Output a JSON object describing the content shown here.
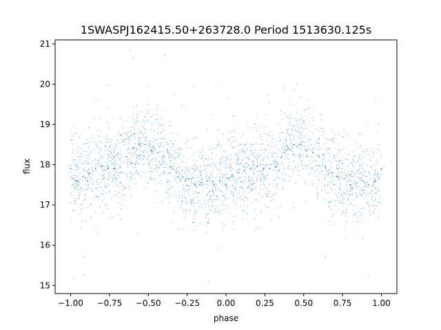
{
  "chart_data": {
    "type": "scatter",
    "title": "1SWASPJ162415.50+263728.0 Period 1513630.125s",
    "xlabel": "phase",
    "ylabel": "flux",
    "xlim": [
      -1.1,
      1.1
    ],
    "ylim": [
      14.8,
      21.1
    ],
    "xticks": [
      -1.0,
      -0.75,
      -0.5,
      -0.25,
      0.0,
      0.25,
      0.5,
      0.75,
      1.0
    ],
    "xtick_labels": [
      "−1.00",
      "−0.75",
      "−0.50",
      "−0.25",
      "0.00",
      "0.25",
      "0.50",
      "0.75",
      "1.00"
    ],
    "yticks": [
      15,
      16,
      17,
      18,
      19,
      20,
      21
    ],
    "ytick_labels": [
      "15",
      "16",
      "17",
      "18",
      "19",
      "20",
      "21"
    ],
    "grid": false,
    "legend": "none",
    "marker_color": "#1f77b4",
    "series": [
      {
        "x": [
          -1.0,
          -0.96,
          -0.92,
          -0.88,
          -0.84,
          -0.8,
          -0.76,
          -0.72,
          -0.68,
          -0.64,
          -0.6,
          -0.56,
          -0.52,
          -0.48,
          -0.44,
          -0.4,
          -0.36,
          -0.32,
          -0.28,
          -0.24,
          -0.2,
          -0.16,
          -0.12,
          -0.08,
          -0.04,
          0.0,
          0.04,
          0.08,
          0.12,
          0.16,
          0.2,
          0.24,
          0.28,
          0.32,
          0.36,
          0.4,
          0.44,
          0.48,
          0.52,
          0.56,
          0.6,
          0.64,
          0.68,
          0.72,
          0.76,
          0.8,
          0.84,
          0.88,
          0.92,
          0.96,
          1.0
        ],
        "y": [
          17.9,
          17.6,
          17.7,
          17.8,
          17.9,
          17.95,
          17.9,
          17.9,
          17.95,
          18.2,
          18.4,
          18.5,
          18.5,
          18.35,
          18.3,
          18.2,
          17.95,
          17.8,
          17.7,
          17.65,
          17.5,
          17.55,
          17.6,
          17.5,
          17.6,
          17.5,
          17.75,
          17.8,
          17.85,
          17.9,
          17.95,
          17.9,
          17.9,
          17.95,
          18.2,
          18.4,
          18.5,
          18.5,
          18.35,
          18.3,
          18.2,
          17.95,
          17.8,
          17.7,
          17.65,
          17.5,
          17.55,
          17.6,
          17.5,
          17.6,
          17.9
        ]
      }
    ]
  }
}
